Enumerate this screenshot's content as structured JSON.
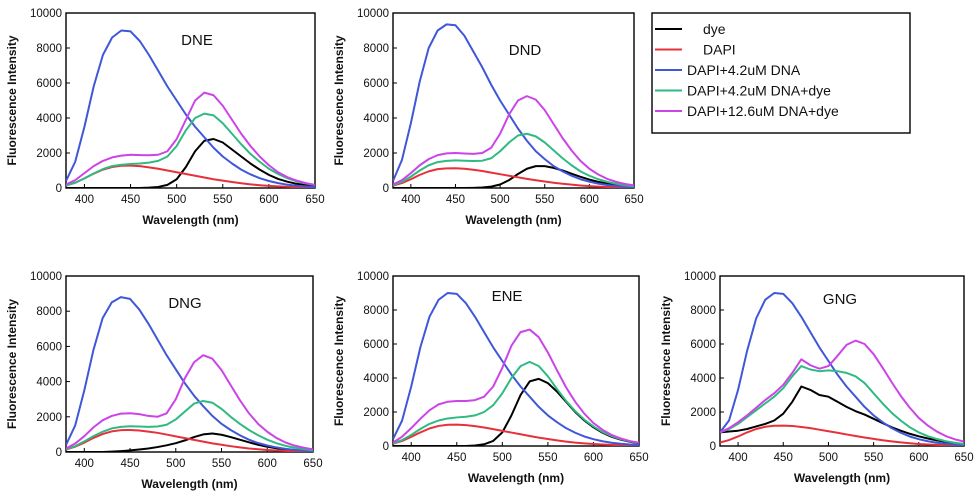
{
  "chart_data": {
    "type": "line",
    "xlabel": "Wavelength (nm)",
    "ylabel": "Fluorescence Intensity",
    "xlim": [
      380,
      650
    ],
    "ylim": [
      0,
      10000
    ],
    "xticks": [
      400,
      450,
      500,
      550,
      600,
      650
    ],
    "yticks": [
      0,
      2000,
      4000,
      6000,
      8000,
      10000
    ],
    "legend": {
      "position": "top-right",
      "entries": [
        {
          "name": "dye",
          "color": "#000000"
        },
        {
          "name": "DAPI",
          "color": "#e8303a"
        },
        {
          "name": "DAPI+4.2uM DNA",
          "color": "#3f57d8"
        },
        {
          "name": "DAPI+4.2uM DNA+dye",
          "color": "#2fba82"
        },
        {
          "name": "DAPI+12.6uM DNA+dye",
          "color": "#cc44e8"
        }
      ]
    },
    "x": [
      380,
      390,
      400,
      410,
      420,
      430,
      440,
      450,
      460,
      470,
      480,
      490,
      500,
      510,
      520,
      530,
      540,
      550,
      560,
      570,
      580,
      590,
      600,
      610,
      620,
      630,
      640,
      650
    ],
    "panels": [
      {
        "title": "DNE",
        "series": [
          {
            "name": "dye",
            "values": [
              0,
              0,
              0,
              0,
              0,
              0,
              0,
              0,
              0,
              20,
              60,
              180,
              500,
              1200,
              2100,
              2700,
              2800,
              2600,
              2200,
              1800,
              1400,
              1050,
              750,
              520,
              360,
              240,
              160,
              100
            ]
          },
          {
            "name": "DAPI",
            "values": [
              150,
              300,
              550,
              820,
              1050,
              1200,
              1270,
              1280,
              1250,
              1180,
              1100,
              1000,
              900,
              800,
              700,
              600,
              500,
              420,
              340,
              270,
              210,
              160,
              120,
              90,
              70,
              50,
              35,
              25
            ]
          },
          {
            "name": "DAPI+4.2uM DNA",
            "values": [
              400,
              1500,
              3500,
              5800,
              7600,
              8600,
              9000,
              8950,
              8400,
              7600,
              6700,
              5800,
              5000,
              4200,
              3500,
              2900,
              2300,
              1800,
              1400,
              1050,
              780,
              560,
              400,
              280,
              190,
              130,
              90,
              60
            ]
          },
          {
            "name": "DAPI+4.2uM DNA+dye",
            "values": [
              150,
              300,
              550,
              830,
              1080,
              1250,
              1330,
              1370,
              1400,
              1450,
              1550,
              1800,
              2400,
              3300,
              4000,
              4250,
              4150,
              3700,
              3100,
              2500,
              1950,
              1500,
              1100,
              800,
              560,
              380,
              260,
              170
            ]
          },
          {
            "name": "DAPI+12.6uM DNA+dye",
            "values": [
              200,
              450,
              850,
              1250,
              1550,
              1750,
              1850,
              1900,
              1880,
              1870,
              1900,
              2100,
              2800,
              3900,
              5000,
              5450,
              5300,
              4700,
              3900,
              3100,
              2400,
              1800,
              1300,
              900,
              620,
              420,
              280,
              180
            ]
          }
        ]
      },
      {
        "title": "DND",
        "series": [
          {
            "name": "dye",
            "values": [
              0,
              0,
              0,
              0,
              0,
              0,
              0,
              0,
              0,
              10,
              30,
              80,
              200,
              450,
              800,
              1100,
              1250,
              1250,
              1150,
              1000,
              820,
              640,
              480,
              350,
              250,
              170,
              110,
              70
            ]
          },
          {
            "name": "DAPI",
            "values": [
              130,
              280,
              500,
              750,
              950,
              1080,
              1120,
              1130,
              1100,
              1040,
              970,
              880,
              790,
              700,
              610,
              520,
              440,
              370,
              300,
              240,
              190,
              145,
              110,
              80,
              60,
              45,
              30,
              20
            ]
          },
          {
            "name": "DAPI+4.2uM DNA",
            "values": [
              400,
              1600,
              3700,
              6100,
              8000,
              9000,
              9350,
              9300,
              8700,
              7800,
              6900,
              5900,
              5000,
              4200,
              3400,
              2700,
              2100,
              1650,
              1250,
              950,
              700,
              500,
              360,
              250,
              170,
              120,
              80,
              50
            ]
          },
          {
            "name": "DAPI+4.2uM DNA+dye",
            "values": [
              150,
              350,
              650,
              1000,
              1300,
              1480,
              1550,
              1580,
              1560,
              1540,
              1560,
              1700,
              2100,
              2600,
              3000,
              3100,
              2950,
              2600,
              2150,
              1700,
              1300,
              950,
              700,
              500,
              350,
              240,
              160,
              100
            ]
          },
          {
            "name": "DAPI+12.6uM DNA+dye",
            "values": [
              200,
              450,
              850,
              1300,
              1650,
              1880,
              1980,
              2000,
              1970,
              1950,
              2000,
              2300,
              3100,
              4200,
              5000,
              5250,
              5050,
              4450,
              3650,
              2850,
              2150,
              1550,
              1100,
              770,
              520,
              350,
              230,
              150
            ]
          }
        ]
      },
      {
        "title": "DNG",
        "series": [
          {
            "name": "dye",
            "values": [
              0,
              0,
              0,
              0,
              0,
              20,
              50,
              90,
              140,
              200,
              280,
              380,
              500,
              660,
              850,
              1000,
              1050,
              980,
              850,
              700,
              550,
              410,
              300,
              210,
              150,
              100,
              70,
              45
            ]
          },
          {
            "name": "DAPI",
            "values": [
              140,
              300,
              530,
              800,
              1020,
              1170,
              1240,
              1250,
              1220,
              1160,
              1090,
              990,
              890,
              790,
              690,
              590,
              490,
              410,
              330,
              260,
              200,
              155,
              115,
              85,
              65,
              45,
              32,
              22
            ]
          },
          {
            "name": "DAPI+4.2uM DNA",
            "values": [
              400,
              1500,
              3500,
              5800,
              7600,
              8500,
              8800,
              8700,
              8100,
              7300,
              6400,
              5500,
              4700,
              3900,
              3200,
              2600,
              2050,
              1600,
              1250,
              950,
              700,
              510,
              370,
              260,
              180,
              120,
              80,
              50
            ]
          },
          {
            "name": "DAPI+4.2uM DNA+dye",
            "values": [
              150,
              330,
              600,
              900,
              1150,
              1340,
              1430,
              1460,
              1450,
              1430,
              1450,
              1550,
              1850,
              2300,
              2750,
              2900,
              2800,
              2450,
              2000,
              1600,
              1250,
              950,
              700,
              500,
              350,
              240,
              160,
              100
            ]
          },
          {
            "name": "DAPI+12.6uM DNA+dye",
            "values": [
              200,
              480,
              900,
              1400,
              1800,
              2050,
              2180,
              2200,
              2150,
              2050,
              2000,
              2200,
              3000,
              4200,
              5100,
              5500,
              5300,
              4650,
              3800,
              2950,
              2200,
              1600,
              1150,
              800,
              540,
              360,
              240,
              150
            ]
          }
        ]
      },
      {
        "title": "ENE",
        "series": [
          {
            "name": "dye",
            "values": [
              0,
              0,
              0,
              0,
              0,
              0,
              0,
              0,
              0,
              30,
              100,
              300,
              800,
              1800,
              3000,
              3800,
              3950,
              3700,
              3200,
              2600,
              2000,
              1500,
              1100,
              780,
              540,
              370,
              250,
              160
            ]
          },
          {
            "name": "DAPI",
            "values": [
              140,
              300,
              540,
              800,
              1030,
              1180,
              1250,
              1260,
              1230,
              1170,
              1090,
              990,
              890,
              790,
              690,
              590,
              490,
              410,
              330,
              260,
              200,
              155,
              115,
              85,
              65,
              45,
              32,
              22
            ]
          },
          {
            "name": "DAPI+4.2uM DNA",
            "values": [
              400,
              1500,
              3500,
              5800,
              7600,
              8600,
              9000,
              8950,
              8400,
              7600,
              6700,
              5800,
              5000,
              4200,
              3500,
              2900,
              2300,
              1800,
              1400,
              1050,
              780,
              560,
              400,
              280,
              190,
              130,
              90,
              60
            ]
          },
          {
            "name": "DAPI+4.2uM DNA+dye",
            "values": [
              150,
              350,
              650,
              1000,
              1300,
              1500,
              1620,
              1680,
              1720,
              1800,
              2000,
              2400,
              3100,
              4000,
              4700,
              4950,
              4700,
              4100,
              3350,
              2650,
              2050,
              1550,
              1150,
              820,
              580,
              400,
              270,
              180
            ]
          },
          {
            "name": "DAPI+12.6uM DNA+dye",
            "values": [
              200,
              550,
              1050,
              1600,
              2100,
              2450,
              2600,
              2650,
              2650,
              2700,
              2900,
              3500,
              4600,
              5900,
              6700,
              6850,
              6400,
              5500,
              4450,
              3450,
              2600,
              1900,
              1350,
              950,
              650,
              440,
              290,
              190
            ]
          }
        ]
      },
      {
        "title": "GNG",
        "series": [
          {
            "name": "dye",
            "values": [
              800,
              850,
              900,
              1000,
              1150,
              1300,
              1500,
              1900,
              2600,
              3500,
              3300,
              3000,
              2900,
              2600,
              2300,
              2050,
              1850,
              1600,
              1350,
              1100,
              900,
              720,
              570,
              440,
              330,
              240,
              170,
              110
            ]
          },
          {
            "name": "DAPI",
            "values": [
              200,
              350,
              560,
              800,
              1000,
              1130,
              1190,
              1200,
              1180,
              1120,
              1050,
              960,
              870,
              780,
              680,
              590,
              500,
              420,
              340,
              270,
              210,
              160,
              120,
              90,
              65,
              45,
              32,
              22
            ]
          },
          {
            "name": "DAPI+4.2uM DNA",
            "values": [
              800,
              1500,
              3300,
              5600,
              7500,
              8600,
              9000,
              8950,
              8400,
              7600,
              6700,
              5800,
              5000,
              4200,
              3500,
              2900,
              2300,
              1800,
              1400,
              1050,
              780,
              560,
              400,
              280,
              190,
              130,
              90,
              60
            ]
          },
          {
            "name": "DAPI+4.2uM DNA+dye",
            "values": [
              800,
              1000,
              1300,
              1700,
              2100,
              2500,
              2900,
              3400,
              4100,
              4700,
              4500,
              4400,
              4450,
              4400,
              4300,
              4100,
              3700,
              3100,
              2500,
              1950,
              1500,
              1100,
              800,
              580,
              410,
              280,
              190,
              120
            ]
          },
          {
            "name": "DAPI+12.6uM DNA+dye",
            "values": [
              800,
              1050,
              1400,
              1800,
              2250,
              2700,
              3100,
              3600,
              4300,
              5100,
              4750,
              4550,
              4700,
              5300,
              5950,
              6200,
              6000,
              5400,
              4600,
              3750,
              2950,
              2250,
              1650,
              1200,
              850,
              580,
              390,
              260
            ]
          }
        ]
      }
    ]
  }
}
